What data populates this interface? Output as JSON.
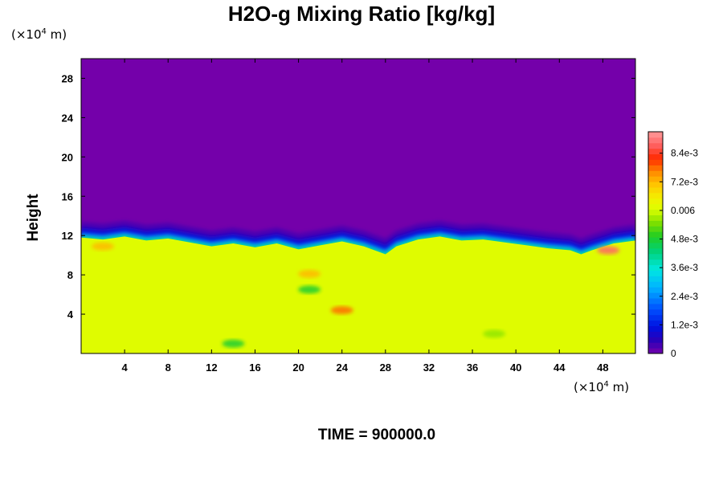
{
  "chart_data": {
    "type": "heatmap",
    "title": "H2O-g Mixing Ratio [kg/kg]",
    "ylabel": "Height",
    "xlabel": "",
    "x_unit": {
      "prefix": "(×10",
      "exp": "4",
      "suffix": " m)"
    },
    "y_unit": {
      "prefix": "(×10",
      "exp": "4",
      "suffix": " m)"
    },
    "xlim": [
      0,
      51
    ],
    "ylim": [
      0,
      30
    ],
    "x_ticks": [
      4,
      8,
      12,
      16,
      20,
      24,
      28,
      32,
      36,
      40,
      44,
      48
    ],
    "y_ticks": [
      4,
      8,
      12,
      16,
      20,
      24,
      28
    ],
    "colorbar": {
      "range": [
        0,
        0.0093
      ],
      "tick_values": [
        0,
        0.0012,
        0.0024,
        0.0036,
        0.0048,
        0.006,
        0.0072,
        0.0084
      ],
      "tick_labels": [
        "0",
        "1.2e-3",
        "2.4e-3",
        "3.6e-3",
        "4.8e-3",
        "0.006",
        "7.2e-3",
        "8.4e-3"
      ]
    },
    "field_summary": {
      "boundary_height": [
        [
          0,
          11.8
        ],
        [
          2,
          11.6
        ],
        [
          4,
          11.9
        ],
        [
          6,
          11.5
        ],
        [
          8,
          11.7
        ],
        [
          10,
          11.3
        ],
        [
          12,
          10.9
        ],
        [
          14,
          11.2
        ],
        [
          16,
          10.8
        ],
        [
          18,
          11.2
        ],
        [
          20,
          10.6
        ],
        [
          22,
          11.0
        ],
        [
          24,
          11.4
        ],
        [
          26,
          10.9
        ],
        [
          28,
          10.1
        ],
        [
          29,
          10.9
        ],
        [
          31,
          11.6
        ],
        [
          33,
          11.9
        ],
        [
          35,
          11.5
        ],
        [
          37,
          11.6
        ],
        [
          39,
          11.3
        ],
        [
          41,
          11.0
        ],
        [
          43,
          10.7
        ],
        [
          45,
          10.5
        ],
        [
          46,
          10.1
        ],
        [
          47,
          10.5
        ],
        [
          49,
          11.2
        ],
        [
          51,
          11.5
        ]
      ],
      "upper_value": 0.0,
      "lower_value": 0.0061,
      "features": [
        {
          "x": 2,
          "y": 10.9,
          "value": 0.0072
        },
        {
          "x": 21,
          "y": 8.1,
          "value": 0.0072
        },
        {
          "x": 24,
          "y": 4.4,
          "value": 0.0078
        },
        {
          "x": 48.5,
          "y": 10.5,
          "value": 0.0088
        },
        {
          "x": 21,
          "y": 6.5,
          "value": 0.0048
        },
        {
          "x": 14,
          "y": 1.0,
          "value": 0.0048
        },
        {
          "x": 38,
          "y": 2.0,
          "value": 0.0056
        }
      ]
    }
  },
  "time_label": "TIME = 900000.0",
  "colors": {
    "top": "#7400aa",
    "field": "#dcfe00"
  }
}
